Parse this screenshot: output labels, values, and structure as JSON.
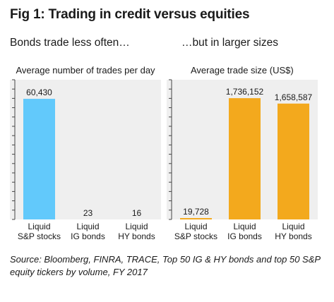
{
  "title": "Fig 1: Trading in credit versus equities",
  "subtitles": {
    "left": "Bonds trade less often…",
    "right": "…but in larger sizes"
  },
  "source_lines": [
    "Source: Bloomberg, FINRA, TRACE, Top 50 IG & HY bonds and top 50 S&P",
    "equity tickers by volume, FY 2017"
  ],
  "colors": {
    "left_bar": "#62c9fb",
    "right_bar": "#f3a91d",
    "panel_bg": "#efefef",
    "axis": "#444444"
  },
  "chart_data": [
    {
      "type": "bar",
      "title": "Average number of trades per day",
      "categories": [
        [
          "Liquid",
          "S&P stocks"
        ],
        [
          "Liquid",
          "IG bonds"
        ],
        [
          "Liquid",
          "HY bonds"
        ]
      ],
      "values": [
        60430,
        23,
        16
      ],
      "value_labels": [
        "60,430",
        "23",
        "16"
      ],
      "ylim": [
        0,
        70000
      ],
      "grid": false,
      "legend": "none"
    },
    {
      "type": "bar",
      "title": "Average trade size (US$)",
      "categories": [
        [
          "Liquid",
          "S&P stocks"
        ],
        [
          "Liquid",
          "IG bonds"
        ],
        [
          "Liquid",
          "HY bonds"
        ]
      ],
      "values": [
        19728,
        1736152,
        1658587
      ],
      "value_labels": [
        "19,728",
        "1,736,152",
        "1,658,587"
      ],
      "ylim": [
        0,
        2000000
      ],
      "grid": false,
      "legend": "none"
    }
  ]
}
